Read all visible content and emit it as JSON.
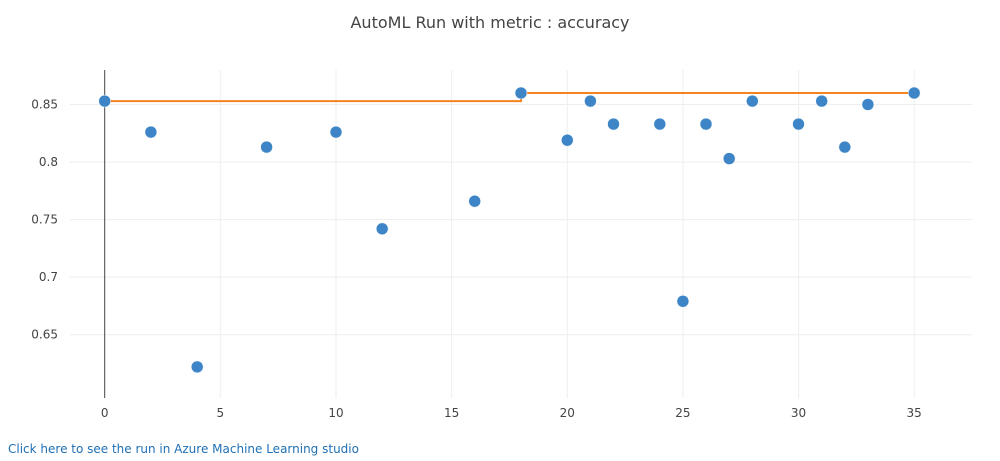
{
  "colors": {
    "point": "#3d85c6",
    "best_line": "#f5831f"
  },
  "link": {
    "text": "Click here to see the run in Azure Machine Learning studio"
  },
  "chart_data": [
    {
      "type": "scatter",
      "title": "AutoML Run with metric : accuracy",
      "xlabel": "",
      "ylabel": "",
      "xlim": [
        -1.5,
        37.5
      ],
      "ylim": [
        0.595,
        0.88
      ],
      "xticks": [
        0,
        5,
        10,
        15,
        20,
        25,
        30,
        35
      ],
      "yticks": [
        0.65,
        0.7,
        0.75,
        0.8,
        0.85
      ],
      "ytick_labels": [
        "0.65",
        "0.7",
        "0.75",
        "0.8",
        "0.85"
      ],
      "grid": true,
      "legend": "none",
      "points": [
        {
          "x": 0,
          "y": 0.853
        },
        {
          "x": 2,
          "y": 0.826
        },
        {
          "x": 4,
          "y": 0.622
        },
        {
          "x": 7,
          "y": 0.813
        },
        {
          "x": 10,
          "y": 0.826
        },
        {
          "x": 12,
          "y": 0.742
        },
        {
          "x": 16,
          "y": 0.766
        },
        {
          "x": 18,
          "y": 0.86
        },
        {
          "x": 20,
          "y": 0.819
        },
        {
          "x": 21,
          "y": 0.853
        },
        {
          "x": 22,
          "y": 0.833
        },
        {
          "x": 24,
          "y": 0.833
        },
        {
          "x": 25,
          "y": 0.679
        },
        {
          "x": 26,
          "y": 0.833
        },
        {
          "x": 27,
          "y": 0.803
        },
        {
          "x": 28,
          "y": 0.853
        },
        {
          "x": 30,
          "y": 0.833
        },
        {
          "x": 31,
          "y": 0.853
        },
        {
          "x": 32,
          "y": 0.813
        },
        {
          "x": 33,
          "y": 0.85
        },
        {
          "x": 35,
          "y": 0.86
        }
      ],
      "best_line": [
        {
          "x": 0,
          "y": 0.853
        },
        {
          "x": 18,
          "y": 0.853
        },
        {
          "x": 18,
          "y": 0.86
        },
        {
          "x": 35,
          "y": 0.86
        }
      ]
    }
  ]
}
